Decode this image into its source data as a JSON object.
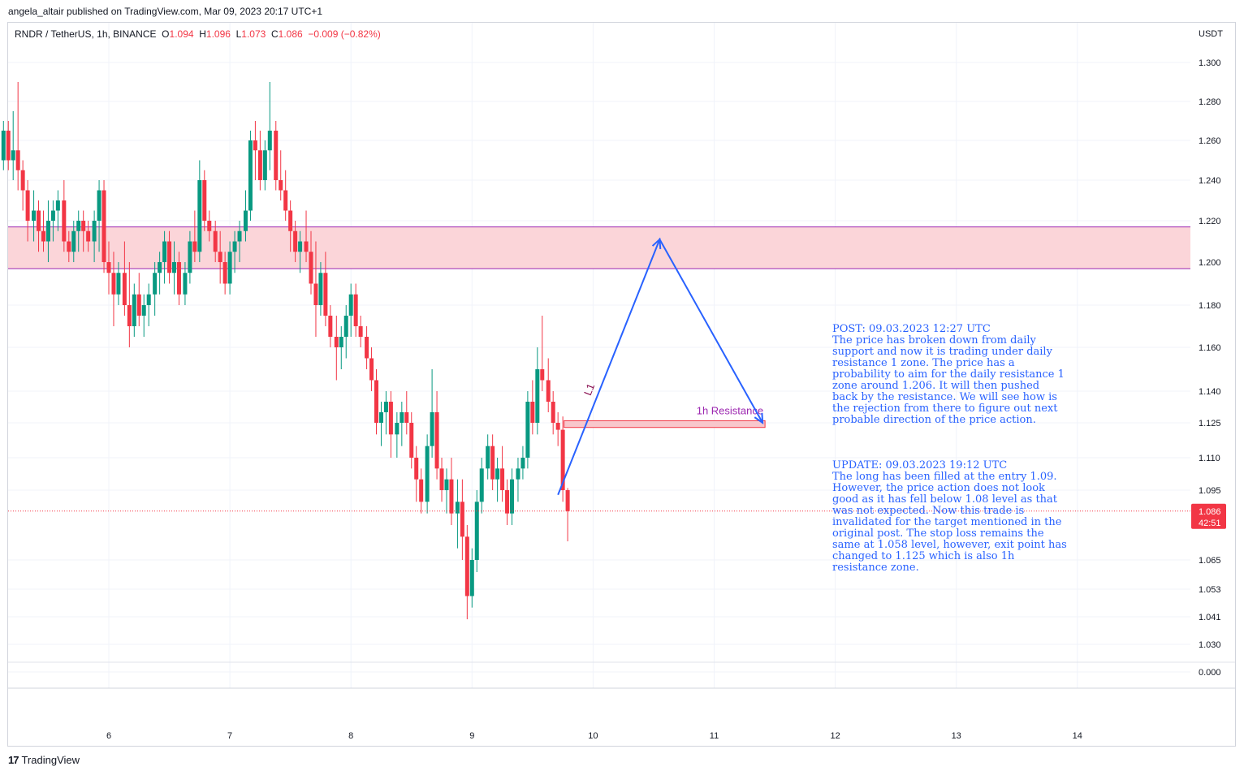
{
  "header": {
    "published_line": "angela_altair published on TradingView.com, Mar 09, 2023 20:17 UTC+1"
  },
  "legend": {
    "symbol": "RNDR / TetherUS, 1h, BINANCE",
    "o_label": "O",
    "o_value": "1.094",
    "h_label": "H",
    "h_value": "1.096",
    "l_label": "L",
    "l_value": "1.073",
    "c_label": "C",
    "c_value": "1.086",
    "change": "−0.009 (−0.82%)"
  },
  "footer": {
    "brand": "TradingView"
  },
  "note": {
    "post": "POST: 09.03.2023 12:27 UTC\nThe price has broken down from daily support and now it is trading under daily resistance 1 zone. The price has a probability to aim for the daily resistance 1 zone around 1.206. It will then pushed back by the resistance. We will see how is the rejection from there to figure out next probable direction of the price action.",
    "update": "UPDATE: 09.03.2023 19:12 UTC\nThe long has been filled at the entry 1.09. However, the price action does not look good as it has fell below 1.08 level as that was not expected. Now this trade is invalidated for the target mentioned in the original post. The stop loss remains the same at 1.058 level, however, exit point has changed to 1.125 which is also 1h resistance zone."
  },
  "colors": {
    "up": "#089981",
    "down": "#f23645",
    "zone_fill": "#fbd5d9",
    "zone_border": "#9c27b0",
    "projection": "#2962ff",
    "resistance_label": "#9c27b0",
    "grid": "#f0f3fa"
  },
  "chart_data": {
    "type": "candlestick",
    "currency": "USDT",
    "y_ticks": [
      "1.300",
      "1.280",
      "1.260",
      "1.240",
      "1.220",
      "1.200",
      "1.180",
      "1.160",
      "1.140",
      "1.125",
      "1.110",
      "1.095",
      "1.065",
      "1.053",
      "1.041",
      "1.030",
      "0.000"
    ],
    "x_ticks": [
      6,
      7,
      8,
      9,
      10,
      11,
      12,
      13,
      14
    ],
    "last_price": "1.086",
    "countdown": "42:51",
    "zone": {
      "low": 1.197,
      "high": 1.217
    },
    "resistance": {
      "label": "1h Resistance",
      "low": 1.123,
      "high": 1.126,
      "x_start": 9.76,
      "x_end": 11.42
    },
    "projection_label": "L1",
    "projection": [
      {
        "x": 9.71,
        "y": 1.093
      },
      {
        "x": 10.55,
        "y": 1.211
      },
      {
        "x": 11.4,
        "y": 1.125
      }
    ],
    "candles": [
      [
        5.13,
        1.25,
        1.27,
        1.245,
        1.265
      ],
      [
        5.17,
        1.265,
        1.27,
        1.245,
        1.25
      ],
      [
        5.21,
        1.25,
        1.275,
        1.24,
        1.255
      ],
      [
        5.25,
        1.255,
        1.29,
        1.235,
        1.245
      ],
      [
        5.29,
        1.245,
        1.25,
        1.225,
        1.235
      ],
      [
        5.33,
        1.235,
        1.24,
        1.21,
        1.22
      ],
      [
        5.38,
        1.22,
        1.235,
        1.21,
        1.225
      ],
      [
        5.42,
        1.225,
        1.23,
        1.205,
        1.215
      ],
      [
        5.46,
        1.215,
        1.225,
        1.205,
        1.21
      ],
      [
        5.5,
        1.21,
        1.23,
        1.2,
        1.22
      ],
      [
        5.54,
        1.22,
        1.23,
        1.21,
        1.225
      ],
      [
        5.58,
        1.225,
        1.235,
        1.215,
        1.23
      ],
      [
        5.63,
        1.23,
        1.24,
        1.205,
        1.21
      ],
      [
        5.67,
        1.21,
        1.215,
        1.2,
        1.205
      ],
      [
        5.71,
        1.205,
        1.22,
        1.2,
        1.215
      ],
      [
        5.75,
        1.215,
        1.225,
        1.205,
        1.22
      ],
      [
        5.79,
        1.22,
        1.225,
        1.205,
        1.215
      ],
      [
        5.83,
        1.215,
        1.22,
        1.205,
        1.21
      ],
      [
        5.88,
        1.21,
        1.225,
        1.2,
        1.22
      ],
      [
        5.92,
        1.22,
        1.24,
        1.205,
        1.235
      ],
      [
        5.96,
        1.235,
        1.24,
        1.195,
        1.2
      ],
      [
        6.0,
        1.2,
        1.21,
        1.185,
        1.195
      ],
      [
        6.04,
        1.195,
        1.205,
        1.17,
        1.185
      ],
      [
        6.08,
        1.185,
        1.2,
        1.18,
        1.195
      ],
      [
        6.13,
        1.195,
        1.21,
        1.175,
        1.18
      ],
      [
        6.17,
        1.18,
        1.2,
        1.16,
        1.17
      ],
      [
        6.21,
        1.17,
        1.19,
        1.165,
        1.185
      ],
      [
        6.25,
        1.185,
        1.195,
        1.17,
        1.175
      ],
      [
        6.29,
        1.175,
        1.185,
        1.165,
        1.18
      ],
      [
        6.33,
        1.18,
        1.19,
        1.17,
        1.185
      ],
      [
        6.38,
        1.185,
        1.2,
        1.175,
        1.195
      ],
      [
        6.42,
        1.195,
        1.205,
        1.185,
        1.2
      ],
      [
        6.46,
        1.2,
        1.215,
        1.19,
        1.21
      ],
      [
        6.5,
        1.21,
        1.215,
        1.19,
        1.195
      ],
      [
        6.54,
        1.195,
        1.21,
        1.185,
        1.2
      ],
      [
        6.58,
        1.2,
        1.205,
        1.18,
        1.185
      ],
      [
        6.63,
        1.185,
        1.2,
        1.18,
        1.195
      ],
      [
        6.67,
        1.195,
        1.215,
        1.19,
        1.21
      ],
      [
        6.71,
        1.21,
        1.225,
        1.2,
        1.205
      ],
      [
        6.75,
        1.205,
        1.25,
        1.2,
        1.24
      ],
      [
        6.79,
        1.24,
        1.245,
        1.215,
        1.22
      ],
      [
        6.83,
        1.22,
        1.225,
        1.21,
        1.215
      ],
      [
        6.88,
        1.215,
        1.22,
        1.2,
        1.205
      ],
      [
        6.92,
        1.205,
        1.215,
        1.19,
        1.2
      ],
      [
        6.96,
        1.2,
        1.205,
        1.185,
        1.19
      ],
      [
        7.0,
        1.19,
        1.21,
        1.185,
        1.205
      ],
      [
        7.04,
        1.205,
        1.215,
        1.195,
        1.21
      ],
      [
        7.08,
        1.21,
        1.22,
        1.2,
        1.215
      ],
      [
        7.13,
        1.215,
        1.235,
        1.21,
        1.225
      ],
      [
        7.17,
        1.225,
        1.265,
        1.22,
        1.26
      ],
      [
        7.21,
        1.26,
        1.27,
        1.24,
        1.255
      ],
      [
        7.25,
        1.255,
        1.265,
        1.235,
        1.24
      ],
      [
        7.29,
        1.24,
        1.26,
        1.235,
        1.255
      ],
      [
        7.33,
        1.255,
        1.29,
        1.245,
        1.265
      ],
      [
        7.38,
        1.265,
        1.27,
        1.235,
        1.24
      ],
      [
        7.42,
        1.24,
        1.255,
        1.23,
        1.235
      ],
      [
        7.46,
        1.235,
        1.245,
        1.22,
        1.225
      ],
      [
        7.5,
        1.225,
        1.23,
        1.205,
        1.215
      ],
      [
        7.54,
        1.215,
        1.22,
        1.2,
        1.205
      ],
      [
        7.58,
        1.205,
        1.215,
        1.195,
        1.21
      ],
      [
        7.63,
        1.21,
        1.225,
        1.2,
        1.205
      ],
      [
        7.67,
        1.205,
        1.215,
        1.185,
        1.19
      ],
      [
        7.71,
        1.19,
        1.21,
        1.165,
        1.18
      ],
      [
        7.75,
        1.18,
        1.2,
        1.175,
        1.195
      ],
      [
        7.79,
        1.195,
        1.205,
        1.17,
        1.175
      ],
      [
        7.83,
        1.175,
        1.18,
        1.16,
        1.165
      ],
      [
        7.88,
        1.165,
        1.175,
        1.145,
        1.16
      ],
      [
        7.92,
        1.16,
        1.17,
        1.15,
        1.165
      ],
      [
        7.96,
        1.165,
        1.18,
        1.155,
        1.175
      ],
      [
        8.0,
        1.175,
        1.19,
        1.165,
        1.185
      ],
      [
        8.04,
        1.185,
        1.19,
        1.165,
        1.17
      ],
      [
        8.08,
        1.17,
        1.175,
        1.16,
        1.165
      ],
      [
        8.13,
        1.165,
        1.17,
        1.15,
        1.155
      ],
      [
        8.17,
        1.155,
        1.16,
        1.14,
        1.145
      ],
      [
        8.21,
        1.145,
        1.15,
        1.12,
        1.125
      ],
      [
        8.25,
        1.125,
        1.135,
        1.115,
        1.13
      ],
      [
        8.29,
        1.13,
        1.14,
        1.12,
        1.135
      ],
      [
        8.33,
        1.135,
        1.14,
        1.11,
        1.12
      ],
      [
        8.38,
        1.12,
        1.13,
        1.11,
        1.125
      ],
      [
        8.42,
        1.125,
        1.135,
        1.115,
        1.13
      ],
      [
        8.46,
        1.13,
        1.14,
        1.12,
        1.125
      ],
      [
        8.5,
        1.125,
        1.13,
        1.105,
        1.11
      ],
      [
        8.54,
        1.11,
        1.115,
        1.09,
        1.1
      ],
      [
        8.58,
        1.1,
        1.105,
        1.085,
        1.09
      ],
      [
        8.63,
        1.09,
        1.12,
        1.085,
        1.115
      ],
      [
        8.67,
        1.115,
        1.15,
        1.11,
        1.13
      ],
      [
        8.71,
        1.13,
        1.14,
        1.1,
        1.105
      ],
      [
        8.75,
        1.105,
        1.11,
        1.09,
        1.095
      ],
      [
        8.79,
        1.095,
        1.105,
        1.085,
        1.1
      ],
      [
        8.83,
        1.1,
        1.11,
        1.08,
        1.085
      ],
      [
        8.88,
        1.085,
        1.1,
        1.07,
        1.09
      ],
      [
        8.92,
        1.09,
        1.1,
        1.065,
        1.075
      ],
      [
        8.96,
        1.075,
        1.08,
        1.04,
        1.05
      ],
      [
        9.0,
        1.05,
        1.07,
        1.045,
        1.065
      ],
      [
        9.04,
        1.065,
        1.095,
        1.06,
        1.09
      ],
      [
        9.08,
        1.09,
        1.11,
        1.085,
        1.105
      ],
      [
        9.13,
        1.105,
        1.12,
        1.1,
        1.115
      ],
      [
        9.17,
        1.115,
        1.12,
        1.095,
        1.1
      ],
      [
        9.21,
        1.1,
        1.11,
        1.09,
        1.105
      ],
      [
        9.25,
        1.105,
        1.115,
        1.09,
        1.095
      ],
      [
        9.29,
        1.095,
        1.1,
        1.08,
        1.085
      ],
      [
        9.33,
        1.085,
        1.105,
        1.08,
        1.1
      ],
      [
        9.38,
        1.1,
        1.11,
        1.09,
        1.105
      ],
      [
        9.42,
        1.105,
        1.115,
        1.1,
        1.11
      ],
      [
        9.46,
        1.11,
        1.14,
        1.105,
        1.135
      ],
      [
        9.5,
        1.135,
        1.145,
        1.12,
        1.125
      ],
      [
        9.54,
        1.125,
        1.16,
        1.12,
        1.15
      ],
      [
        9.58,
        1.15,
        1.175,
        1.14,
        1.145
      ],
      [
        9.63,
        1.145,
        1.155,
        1.13,
        1.135
      ],
      [
        9.67,
        1.135,
        1.14,
        1.12,
        1.125
      ],
      [
        9.71,
        1.125,
        1.13,
        1.115,
        1.122
      ],
      [
        9.75,
        1.122,
        1.128,
        1.09,
        1.095
      ],
      [
        9.79,
        1.095,
        1.096,
        1.073,
        1.086
      ]
    ]
  }
}
